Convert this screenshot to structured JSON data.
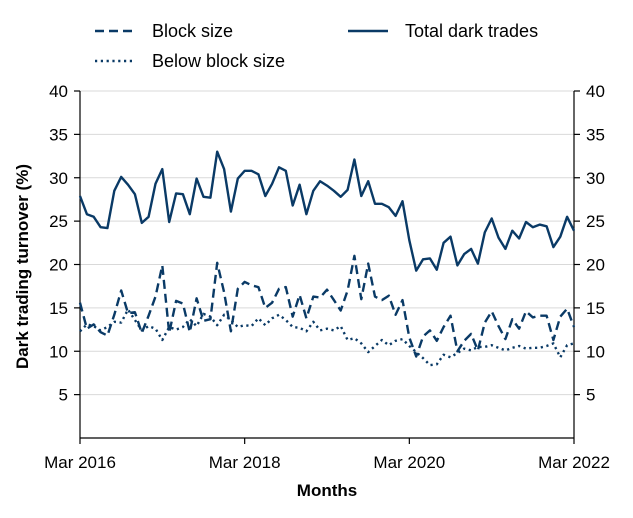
{
  "chart_data": {
    "type": "line",
    "title": "",
    "xlabel": "Months",
    "ylabel": "Dark trading turnover (%)",
    "ylim": [
      0,
      40
    ],
    "yticks": [
      5,
      10,
      15,
      20,
      25,
      30,
      35,
      40
    ],
    "right_axis_ticks_mirrored": true,
    "grid": "horizontal",
    "xlim": [
      0,
      72
    ],
    "x_unit": "months since Mar 2016",
    "xticks": [
      {
        "x": 0,
        "label": "Mar 2016"
      },
      {
        "x": 24,
        "label": "Mar 2018"
      },
      {
        "x": 48,
        "label": "Mar 2020"
      },
      {
        "x": 72,
        "label": "Mar 2022"
      }
    ],
    "legend": {
      "placement": "top",
      "entries": [
        {
          "label": "Block size",
          "style": "dashed"
        },
        {
          "label": "Below block size",
          "style": "dotted"
        },
        {
          "label": "Total dark trades",
          "style": "solid"
        }
      ]
    },
    "color": "#0a3a66",
    "series": [
      {
        "name": "Total dark trades",
        "style": "solid",
        "values": [
          27.9,
          25.8,
          25.5,
          24.3,
          24.2,
          28.5,
          30.1,
          29.2,
          28.1,
          24.8,
          25.5,
          29.3,
          31.0,
          24.9,
          28.2,
          28.1,
          25.8,
          29.9,
          27.8,
          27.7,
          33.0,
          31.0,
          26.1,
          29.9,
          30.8,
          30.8,
          30.4,
          27.9,
          29.3,
          31.2,
          30.8,
          26.8,
          29.2,
          25.8,
          28.5,
          29.6,
          29.1,
          28.5,
          27.8,
          28.6,
          32.1,
          27.9,
          29.6,
          27.0,
          27.0,
          26.6,
          25.6,
          27.3,
          22.8,
          19.3,
          20.6,
          20.7,
          19.4,
          22.5,
          23.2,
          19.9,
          21.2,
          21.8,
          20.1,
          23.7,
          25.3,
          23.1,
          21.8,
          23.9,
          23.0,
          24.9,
          24.3,
          24.6,
          24.4,
          22.0,
          23.2,
          25.5,
          23.9
        ]
      },
      {
        "name": "Block size",
        "style": "dashed",
        "values": [
          15.6,
          12.6,
          13.1,
          12.2,
          11.8,
          14.2,
          17.0,
          14.4,
          14.5,
          12.1,
          14.1,
          16.3,
          19.9,
          12.1,
          15.8,
          15.5,
          12.2,
          16.1,
          13.5,
          13.7,
          20.2,
          16.8,
          12.3,
          17.2,
          18.0,
          17.6,
          17.4,
          15.0,
          15.6,
          17.2,
          17.4,
          14.0,
          16.5,
          13.8,
          16.3,
          16.2,
          17.1,
          15.9,
          14.7,
          17.0,
          21.0,
          16.0,
          20.1,
          16.3,
          15.9,
          16.4,
          14.2,
          15.9,
          11.6,
          9.4,
          11.7,
          12.4,
          11.2,
          12.8,
          14.1,
          10.0,
          11.2,
          12.0,
          10.1,
          13.3,
          14.6,
          12.9,
          11.4,
          13.7,
          12.6,
          14.6,
          13.9,
          14.1,
          14.1,
          11.3,
          14.0,
          14.9,
          12.8
        ]
      },
      {
        "name": "Below block size",
        "style": "dotted",
        "values": [
          12.3,
          13.1,
          12.9,
          12.4,
          12.8,
          13.4,
          13.3,
          14.8,
          13.6,
          12.4,
          12.9,
          12.6,
          11.3,
          12.8,
          12.5,
          12.8,
          13.7,
          12.9,
          14.3,
          14.0,
          13.0,
          14.2,
          13.6,
          12.8,
          13.0,
          12.9,
          13.8,
          13.0,
          13.8,
          14.2,
          13.6,
          12.8,
          12.7,
          12.3,
          13.4,
          12.4,
          12.6,
          12.4,
          12.9,
          11.3,
          11.5,
          10.9,
          9.9,
          10.6,
          11.3,
          10.7,
          11.2,
          11.4,
          10.6,
          9.9,
          9.2,
          8.4,
          8.5,
          9.6,
          9.3,
          9.8,
          10.3,
          10.1,
          10.5,
          10.5,
          10.7,
          10.4,
          10.1,
          10.4,
          10.6,
          10.3,
          10.4,
          10.4,
          10.6,
          10.9,
          9.3,
          10.7,
          10.9
        ]
      }
    ]
  }
}
